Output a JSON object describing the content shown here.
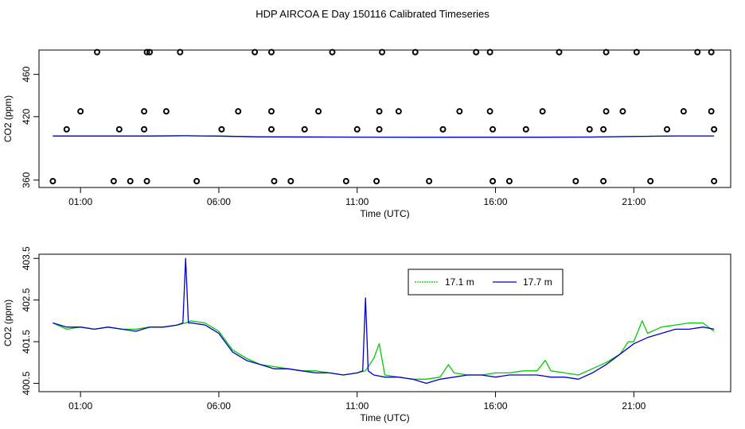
{
  "title": "HDP AIRCOA E  Day 150116  Calibrated Timeseries",
  "colors": {
    "series_a": "#00cc00",
    "series_b": "#0000cc",
    "axis": "#000000",
    "points": "#000000"
  },
  "chart_data": [
    {
      "type": "scatter",
      "xlabel": "Time (UTC)",
      "ylabel": "CO2 (ppm)",
      "xlim": [
        -0.5,
        24.5
      ],
      "ylim": [
        353,
        483
      ],
      "xticks": [
        1,
        6,
        11,
        16,
        21
      ],
      "xtick_labels": [
        "01:00",
        "06:00",
        "11:00",
        "16:00",
        "21:00"
      ],
      "yticks": [
        360,
        420,
        460
      ],
      "ytick_labels": [
        "360",
        "420",
        "460"
      ],
      "points": {
        "x": [
          0.0,
          0.5,
          1.0,
          1.6,
          2.2,
          2.4,
          2.8,
          3.3,
          3.3,
          3.4,
          3.4,
          3.5,
          4.1,
          4.6,
          5.2,
          6.1,
          6.7,
          7.3,
          7.9,
          7.9,
          7.9,
          8.0,
          8.6,
          9.1,
          9.6,
          10.1,
          10.6,
          11.0,
          11.7,
          11.8,
          11.8,
          11.9,
          12.5,
          13.1,
          13.6,
          14.1,
          14.7,
          15.3,
          15.8,
          15.8,
          15.9,
          15.9,
          16.5,
          17.1,
          17.7,
          18.3,
          18.9,
          19.4,
          19.9,
          19.9,
          20.0,
          20.0,
          20.6,
          21.1,
          21.6,
          22.2,
          22.8,
          23.3,
          23.8,
          23.8,
          23.9,
          23.9
        ],
        "y": [
          359,
          408,
          425,
          481,
          359,
          408,
          359,
          408,
          425,
          481,
          359,
          481,
          425,
          481,
          359,
          408,
          425,
          481,
          481,
          425,
          408,
          359,
          359,
          408,
          425,
          481,
          359,
          408,
          359,
          408,
          425,
          481,
          425,
          481,
          359,
          408,
          425,
          481,
          481,
          425,
          408,
          359,
          359,
          408,
          425,
          481,
          359,
          408,
          359,
          408,
          425,
          481,
          425,
          481,
          359,
          408,
          425,
          481,
          481,
          425,
          408,
          359
        ]
      },
      "series": [
        {
          "name": "17.1 m",
          "x": [
            0,
            1.5,
            3.5,
            4.8,
            6.0,
            7.5,
            10.0,
            13.0,
            15.0,
            17.5,
            19.5,
            20.8,
            22.5,
            23.9
          ],
          "y": [
            401.7,
            401.7,
            401.7,
            401.9,
            401.6,
            400.9,
            400.7,
            400.5,
            400.6,
            400.6,
            400.7,
            401.2,
            401.8,
            401.8
          ]
        },
        {
          "name": "17.7 m",
          "x": [
            0,
            1.5,
            3.5,
            4.8,
            6.0,
            7.5,
            10.0,
            13.0,
            15.0,
            17.5,
            19.5,
            20.8,
            22.5,
            23.9
          ],
          "y": [
            401.7,
            401.7,
            401.7,
            401.9,
            401.6,
            400.9,
            400.7,
            400.5,
            400.6,
            400.6,
            400.7,
            401.2,
            401.8,
            401.8
          ]
        }
      ]
    },
    {
      "type": "line",
      "xlabel": "Time (UTC)",
      "ylabel": "CO2 (ppm)",
      "xlim": [
        -0.5,
        24.5
      ],
      "ylim": [
        400.3,
        403.6
      ],
      "xticks": [
        1,
        6,
        11,
        16,
        21
      ],
      "xtick_labels": [
        "01:00",
        "06:00",
        "11:00",
        "16:00",
        "21:00"
      ],
      "yticks": [
        400.5,
        401.5,
        402.5,
        403.5
      ],
      "ytick_labels": [
        "400.5",
        "401.5",
        "402.5",
        "403.5"
      ],
      "legend_position": "top-right",
      "series": [
        {
          "name": "17.1 m",
          "x": [
            0,
            0.5,
            1.0,
            1.5,
            2.0,
            2.5,
            3.0,
            3.5,
            4.0,
            4.5,
            4.8,
            5.0,
            5.5,
            6.0,
            6.5,
            7.0,
            7.5,
            8.0,
            8.5,
            9.0,
            9.5,
            10.0,
            10.5,
            11.0,
            11.3,
            11.6,
            11.8,
            12.0,
            12.5,
            13.0,
            13.5,
            14.0,
            14.3,
            14.5,
            15.0,
            15.5,
            16.0,
            16.5,
            17.0,
            17.5,
            17.8,
            18.0,
            18.5,
            19.0,
            19.5,
            20.0,
            20.5,
            20.8,
            21.0,
            21.3,
            21.5,
            22.0,
            22.5,
            23.0,
            23.5,
            23.9
          ],
          "y": [
            401.95,
            401.8,
            401.85,
            401.8,
            401.85,
            401.8,
            401.8,
            401.85,
            401.85,
            401.9,
            401.95,
            402.0,
            401.95,
            401.75,
            401.3,
            401.1,
            400.95,
            400.9,
            400.85,
            400.8,
            400.8,
            400.75,
            400.7,
            400.75,
            400.8,
            401.1,
            401.45,
            400.7,
            400.65,
            400.6,
            400.6,
            400.65,
            400.95,
            400.75,
            400.7,
            400.7,
            400.75,
            400.75,
            400.8,
            400.8,
            401.05,
            400.8,
            400.75,
            400.7,
            400.85,
            401.0,
            401.2,
            401.5,
            401.5,
            402.0,
            401.7,
            401.85,
            401.9,
            401.95,
            401.95,
            401.75
          ]
        },
        {
          "name": "17.7 m",
          "x": [
            0,
            0.5,
            1.0,
            1.5,
            2.0,
            2.5,
            3.0,
            3.5,
            4.0,
            4.5,
            4.7,
            4.8,
            4.9,
            5.0,
            5.5,
            6.0,
            6.5,
            7.0,
            7.5,
            8.0,
            8.5,
            9.0,
            9.5,
            10.0,
            10.5,
            11.0,
            11.2,
            11.3,
            11.4,
            11.6,
            12.0,
            12.5,
            13.0,
            13.5,
            14.0,
            14.5,
            15.0,
            15.5,
            16.0,
            16.5,
            17.0,
            17.5,
            18.0,
            18.5,
            19.0,
            19.5,
            20.0,
            20.5,
            21.0,
            21.5,
            22.0,
            22.5,
            23.0,
            23.5,
            23.9
          ],
          "y": [
            401.95,
            401.85,
            401.85,
            401.8,
            401.85,
            401.8,
            401.75,
            401.85,
            401.85,
            401.9,
            401.95,
            403.5,
            401.95,
            401.95,
            401.9,
            401.7,
            401.25,
            401.05,
            400.95,
            400.85,
            400.85,
            400.8,
            400.75,
            400.75,
            400.7,
            400.75,
            400.8,
            402.55,
            400.8,
            400.7,
            400.65,
            400.65,
            400.6,
            400.5,
            400.6,
            400.65,
            400.7,
            400.7,
            400.65,
            400.7,
            400.7,
            400.7,
            400.65,
            400.65,
            400.6,
            400.75,
            400.95,
            401.2,
            401.45,
            401.6,
            401.7,
            401.8,
            401.8,
            401.85,
            401.8
          ]
        }
      ]
    }
  ]
}
